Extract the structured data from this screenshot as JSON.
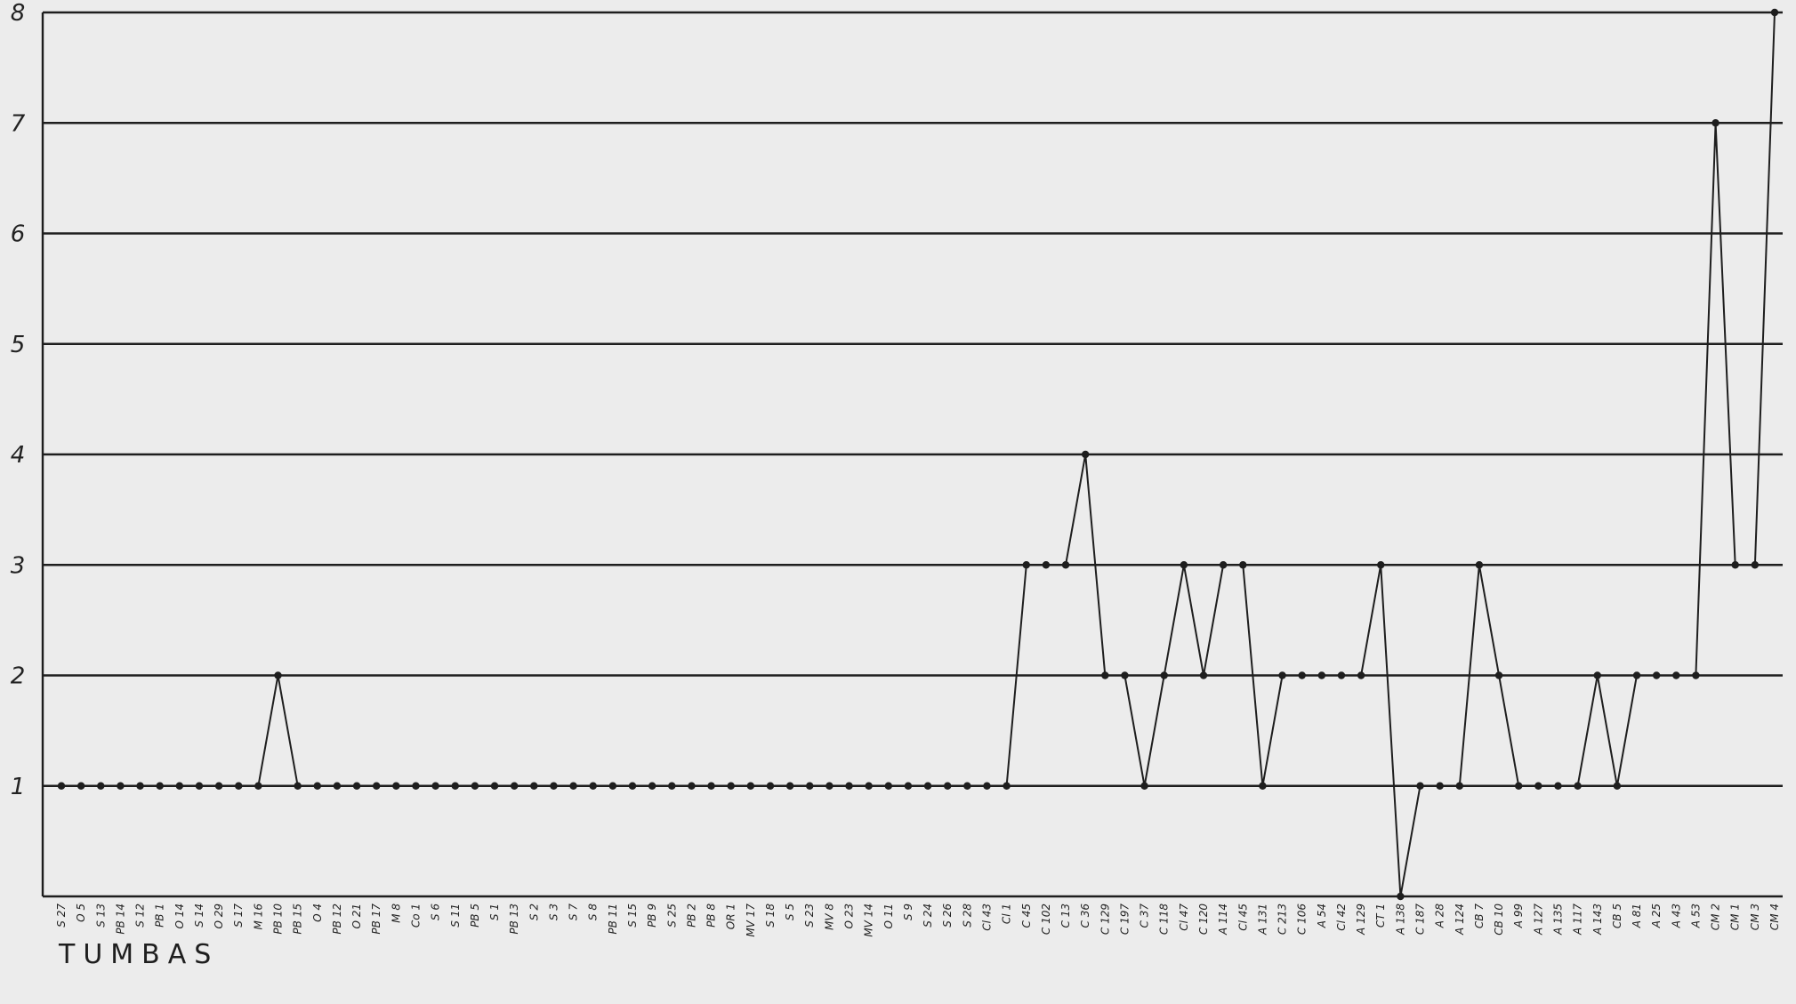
{
  "chart_data": {
    "type": "line",
    "xlabel": "TUMBAS",
    "ylabel": "",
    "ylim": [
      0,
      8
    ],
    "yticks": [
      1,
      2,
      3,
      4,
      5,
      6,
      7,
      8
    ],
    "grid": true,
    "categories": [
      "S 27",
      "O 5",
      "S 13",
      "PB 14",
      "S 12",
      "PB 1",
      "O 14",
      "S 14",
      "O 29",
      "S 17",
      "M 16",
      "PB 10",
      "PB 15",
      "O 4",
      "PB 12",
      "O 21",
      "PB 17",
      "M 8",
      "Co 1",
      "S 6",
      "S 11",
      "PB 5",
      "S 1",
      "PB 13",
      "S 2",
      "S 3",
      "S 7",
      "S 8",
      "PB 11",
      "S 15",
      "PB 9",
      "S 25",
      "PB 2",
      "PB 8",
      "OR 1",
      "MV 17",
      "S 18",
      "S 5",
      "S 23",
      "MV 8",
      "O 23",
      "MV 14",
      "O 11",
      "S 9",
      "S 24",
      "S 26",
      "S 28",
      "Cl 43",
      "Cl 1",
      "C 45",
      "C 102",
      "C 13",
      "C 36",
      "C 129",
      "C 197",
      "C 37",
      "C 118",
      "Cl 47",
      "C 120",
      "A 114",
      "Cl 45",
      "A 131",
      "C 213",
      "C 106",
      "A 54",
      "Cl 42",
      "A 129",
      "CT 1",
      "A 138",
      "C 187",
      "A 28",
      "A 124",
      "CB 7",
      "CB 10",
      "A 99",
      "A 127",
      "A 135",
      "A 117",
      "A 143",
      "CB 5",
      "A 81",
      "A 25",
      "A 43",
      "A 53",
      "CM 2",
      "CM 1",
      "CM 3",
      "CM 4"
    ],
    "series": [
      {
        "values": [
          1,
          1,
          1,
          1,
          1,
          1,
          1,
          1,
          1,
          1,
          1,
          2,
          1,
          1,
          1,
          1,
          1,
          1,
          1,
          1,
          1,
          1,
          1,
          1,
          1,
          1,
          1,
          1,
          1,
          1,
          1,
          1,
          1,
          1,
          1,
          1,
          1,
          1,
          1,
          1,
          1,
          1,
          1,
          1,
          1,
          1,
          1,
          1,
          1,
          3,
          3,
          3,
          4,
          2,
          2,
          1,
          2,
          3,
          2,
          3,
          3,
          1,
          2,
          2,
          2,
          2,
          2,
          3,
          0,
          1,
          1,
          1,
          3,
          2,
          1,
          1,
          1,
          1,
          2,
          1,
          2,
          2,
          2,
          2,
          7,
          3,
          3,
          8
        ]
      }
    ],
    "colors": {
      "line": "#1e1e1e",
      "background": "#ececec"
    }
  }
}
